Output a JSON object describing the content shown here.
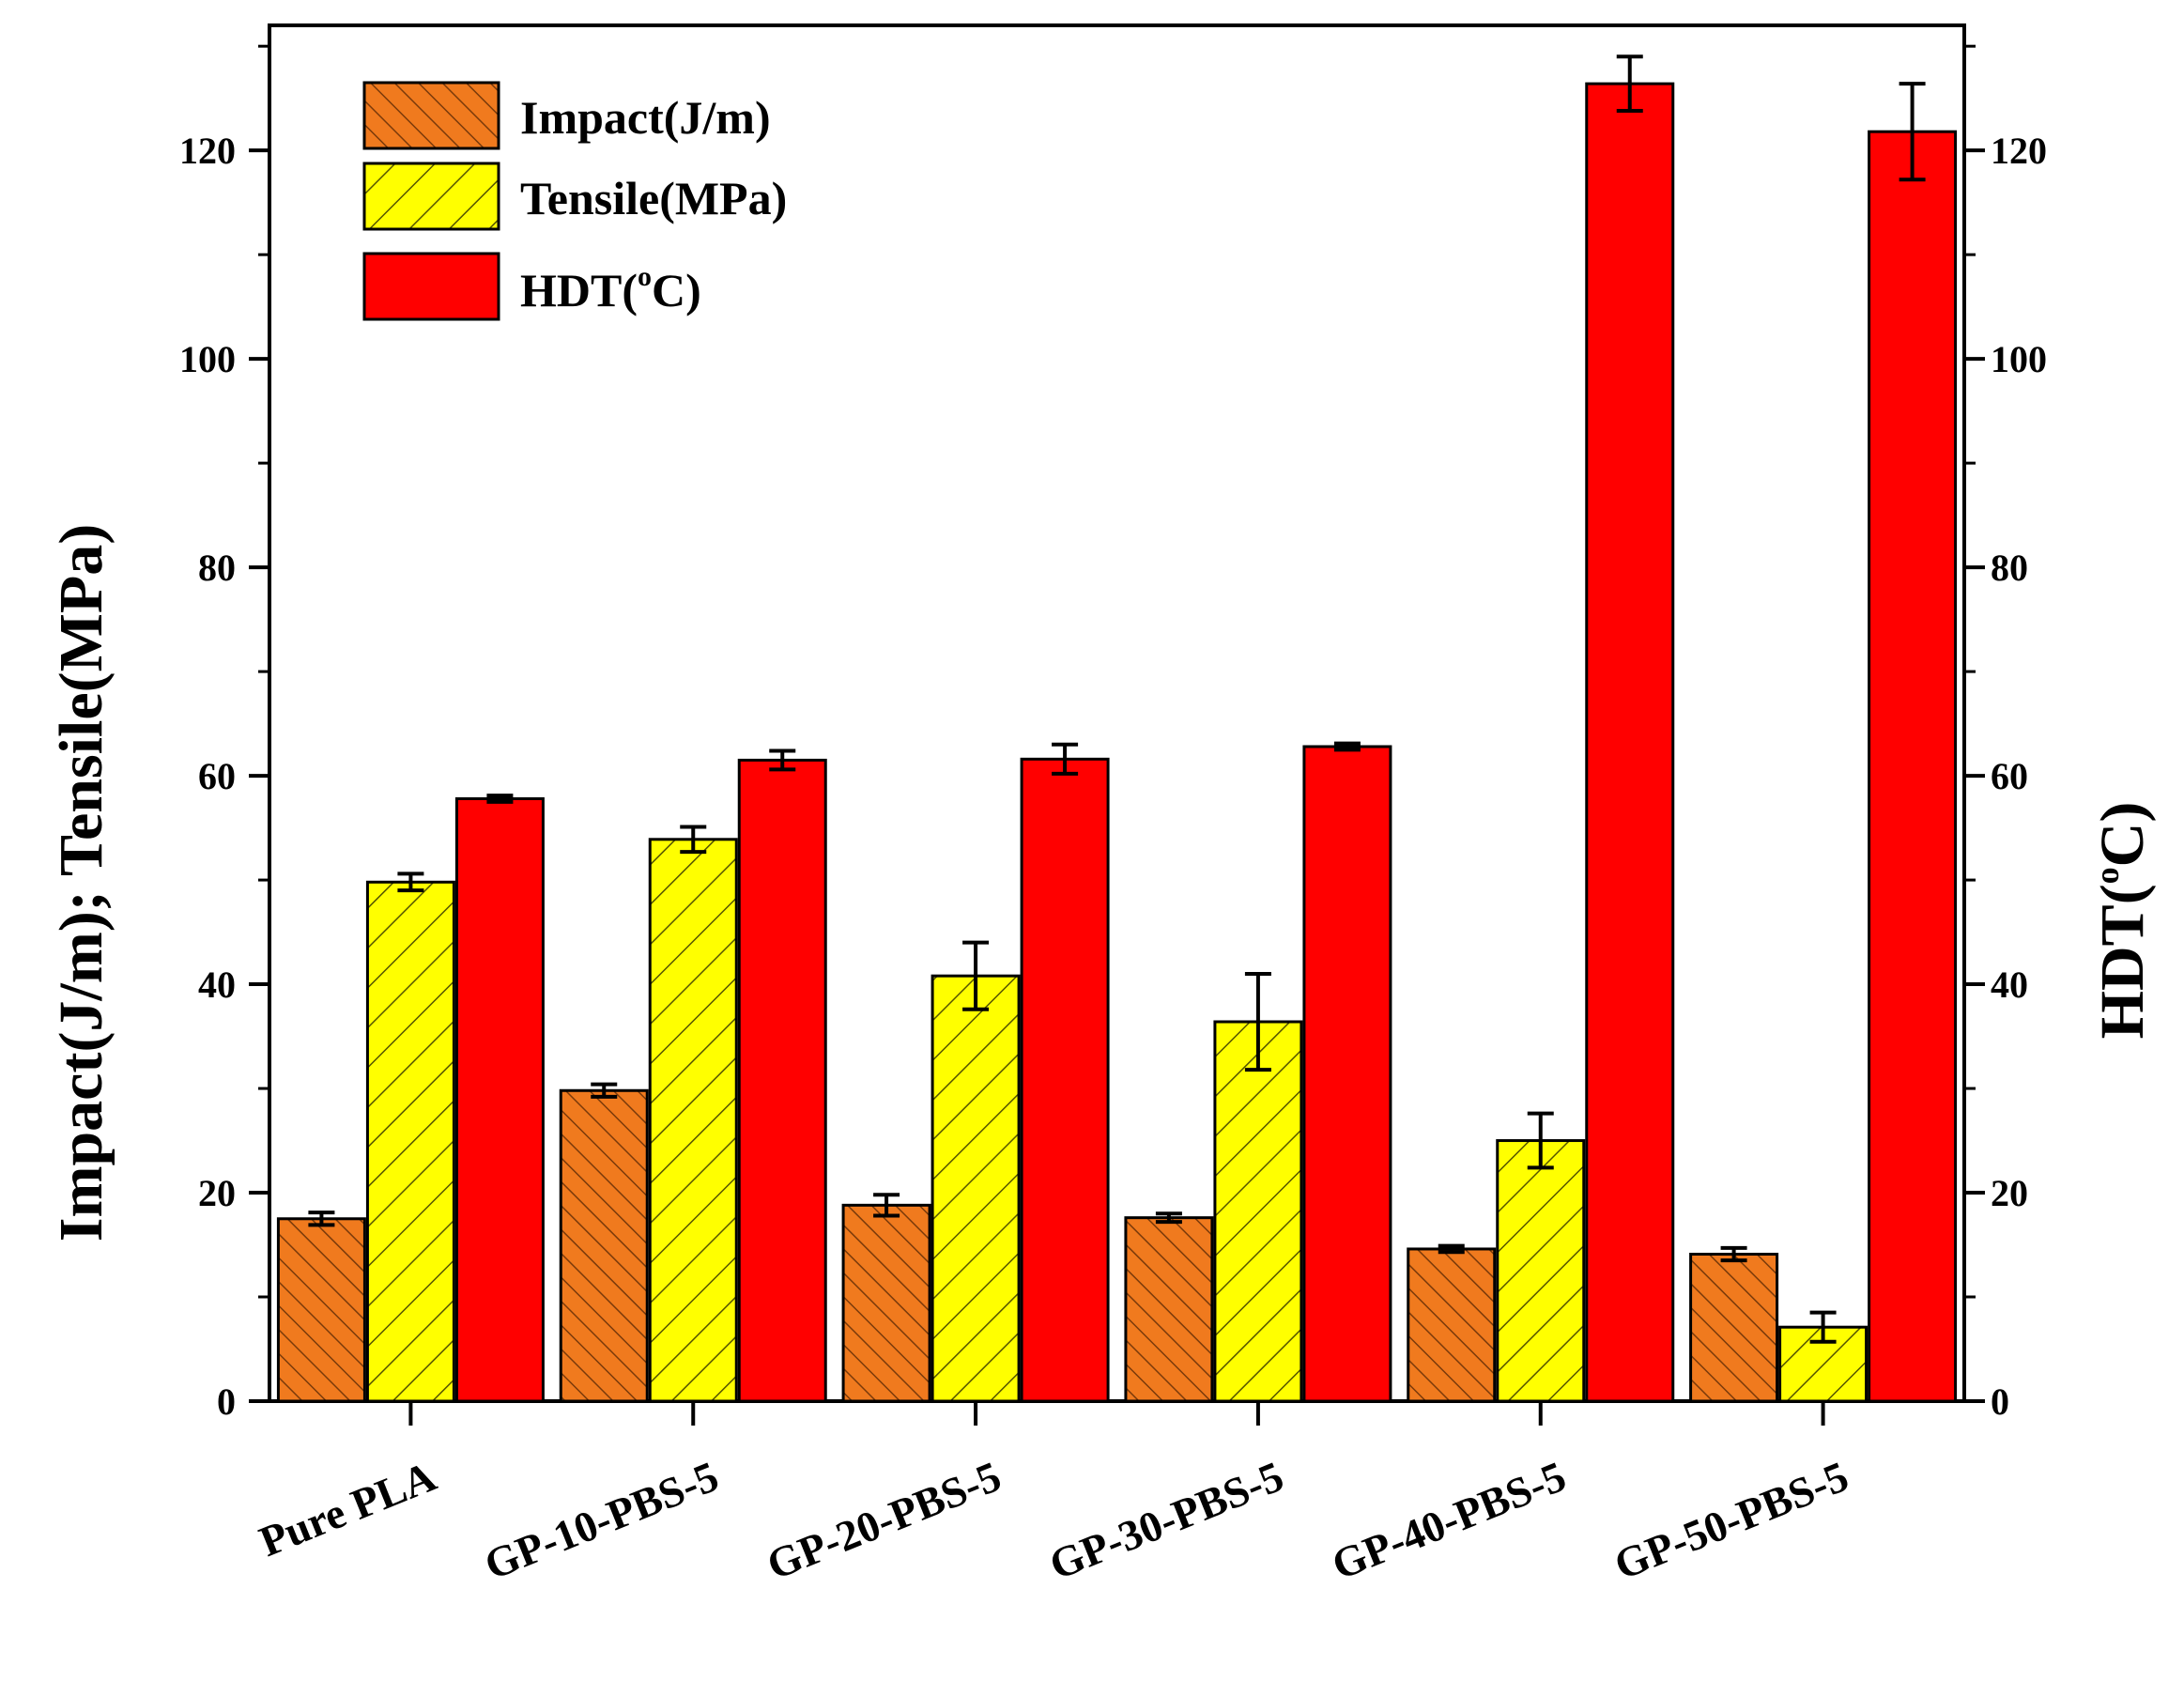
{
  "chart_data": {
    "type": "bar",
    "title": "",
    "xlabel": "",
    "ylabel": "Impact(J/m);  Tensile(MPa)",
    "ylabel_right_main": "HDT(",
    "ylabel_right_sup": "o",
    "ylabel_right_end": "C)",
    "ylim": [
      0,
      132
    ],
    "y_ticks": [
      0,
      20,
      40,
      60,
      80,
      100,
      120
    ],
    "y_ticks_right": [
      0,
      20,
      40,
      60,
      80,
      100,
      120
    ],
    "legend_position": "top-left",
    "categories": [
      "Pure PLA",
      "GP-10-PBS-5",
      "GP-20-PBS-5",
      "GP-30-PBS-5",
      "GP-40-PBS-5",
      "GP-50-PBS-5"
    ],
    "series": [
      {
        "name": "Impact(J/m)",
        "color": "#F07A1E",
        "pattern": "dense-forward-hatch",
        "values": [
          17.5,
          29.8,
          18.8,
          17.6,
          14.6,
          14.1
        ],
        "errors": [
          0.6,
          0.6,
          1.0,
          0.4,
          0.3,
          0.6
        ]
      },
      {
        "name": "Tensile(MPa)",
        "color": "#FFFF00",
        "pattern": "back-hatch",
        "values": [
          49.8,
          53.9,
          40.8,
          36.4,
          25.0,
          7.1
        ],
        "errors": [
          0.8,
          1.2,
          3.2,
          4.6,
          2.6,
          1.4
        ]
      },
      {
        "name_main": "HDT(",
        "name_sup": "o",
        "name_end": "C)",
        "color": "#FF0000",
        "pattern": "solid",
        "values": [
          57.8,
          61.5,
          61.6,
          62.8,
          126.4,
          121.8
        ],
        "errors": [
          0.3,
          0.9,
          1.4,
          0.3,
          2.6,
          4.6
        ]
      }
    ]
  }
}
